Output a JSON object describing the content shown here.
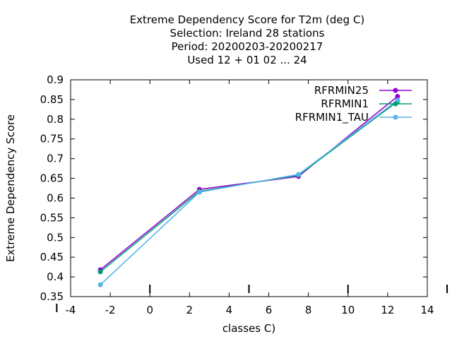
{
  "chart_data": {
    "type": "line",
    "title_lines": [
      "Extreme Dependency Score  for T2m (deg C)",
      "Selection: Ireland     28 stations",
      "Period: 20200203-20200217",
      "Used  12 + 01 02 ... 24"
    ],
    "xlabel": "classes C)",
    "ylabel": "Extreme Dependency Score",
    "xlim": [
      -4,
      14
    ],
    "ylim": [
      0.35,
      0.9
    ],
    "x_ticks": [
      "-4",
      "-2",
      "0",
      "2",
      "4",
      "6",
      "8",
      "10",
      "12",
      "14"
    ],
    "y_ticks": [
      "0.35",
      "0.4",
      "0.45",
      "0.5",
      "0.55",
      "0.6",
      "0.65",
      "0.7",
      "0.75",
      "0.8",
      "0.85",
      "0.9"
    ],
    "legend_position": "top-right",
    "grid": false,
    "series": [
      {
        "name": "RFRMIN25",
        "color": "#9400d3",
        "marker": "circle",
        "x": [
          -2.5,
          2.5,
          7.5,
          12.5
        ],
        "y": [
          0.418,
          0.622,
          0.655,
          0.858
        ]
      },
      {
        "name": "RFRMIN1",
        "color": "#009e73",
        "marker": "circle",
        "x": [
          -2.5,
          2.5,
          7.5,
          12.5
        ],
        "y": [
          0.413,
          0.617,
          0.658,
          0.845
        ]
      },
      {
        "name": "RFRMIN1_TAU",
        "color": "#56b4e9",
        "marker": "circle",
        "x": [
          -2.5,
          2.5,
          7.5,
          12.5
        ],
        "y": [
          0.38,
          0.615,
          0.66,
          0.848
        ]
      }
    ]
  }
}
